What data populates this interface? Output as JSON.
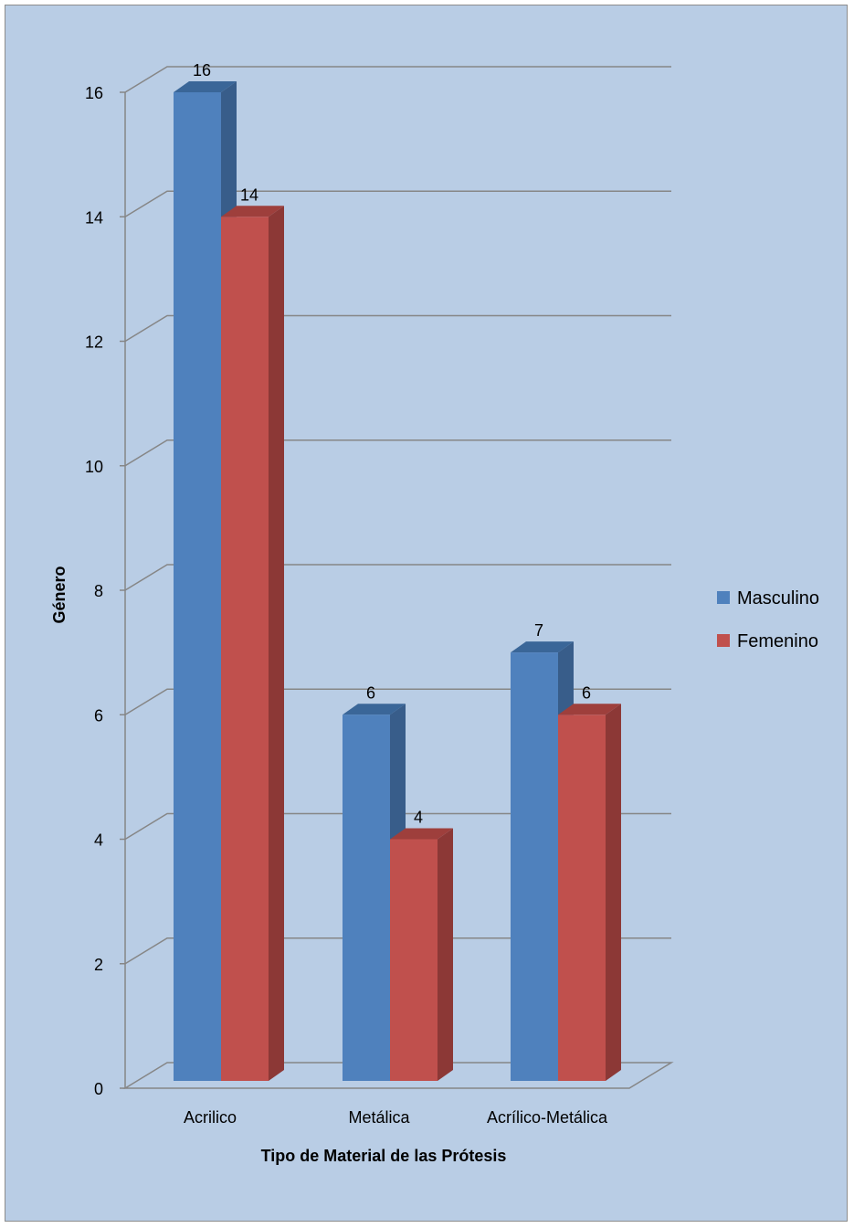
{
  "chart_data": {
    "type": "bar",
    "variant": "3d-clustered-column",
    "title": "",
    "xlabel": "Tipo de Material de las Prótesis",
    "ylabel": "Género",
    "categories": [
      "Acrilico",
      "Metálica",
      "Acrílico-Metálica"
    ],
    "series": [
      {
        "name": "Masculino",
        "values": [
          16,
          6,
          7
        ],
        "color": "#4f81bd",
        "side_color": "#385d8a",
        "top_color": "#3a6698"
      },
      {
        "name": "Femenino",
        "values": [
          14,
          4,
          6
        ],
        "color": "#c0504d",
        "side_color": "#8c3836",
        "top_color": "#9e3f3c"
      }
    ],
    "ylim": [
      0,
      16
    ],
    "yticks": [
      0,
      2,
      4,
      6,
      8,
      10,
      12,
      14,
      16
    ],
    "grid": true,
    "data_labels": true,
    "legend_position": "right",
    "background_color": "#b9cde5",
    "gridline_color": "#868686"
  }
}
